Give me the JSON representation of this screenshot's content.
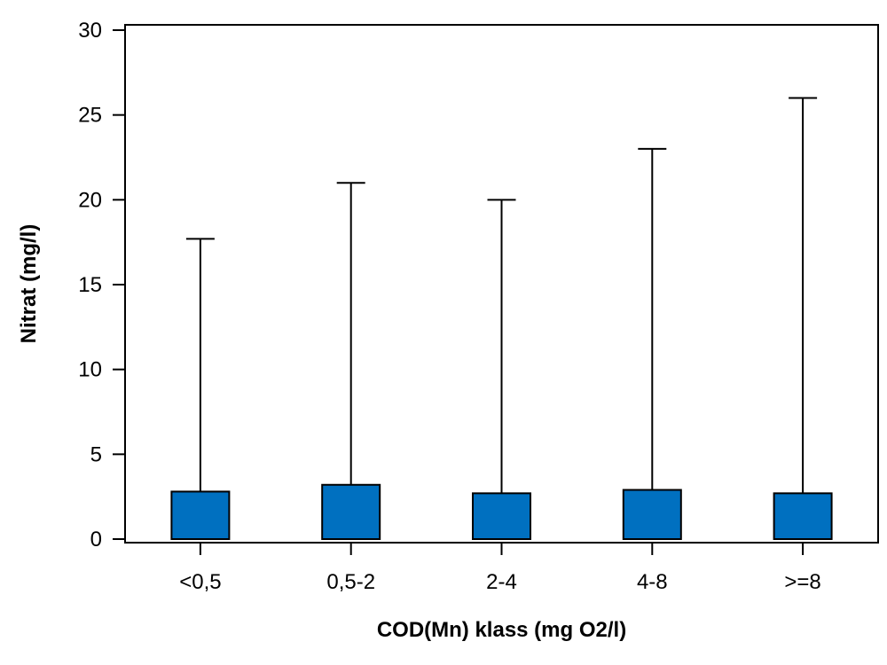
{
  "chart_data": {
    "type": "bar",
    "xlabel": "COD(Mn) klass (mg O2/l)",
    "ylabel": "Nitrat (mg/l)",
    "ylim": [
      0,
      30
    ],
    "yticks": [
      0,
      5,
      10,
      15,
      20,
      25,
      30
    ],
    "ytick_labels": [
      "0",
      "5",
      "10",
      "15",
      "20",
      "25",
      "30"
    ],
    "categories": [
      "<0,5",
      "0,5-2",
      "2-4",
      "4-8",
      ">=8"
    ],
    "values": [
      2.8,
      3.2,
      2.7,
      2.9,
      2.7
    ],
    "error_upper": [
      17.7,
      21.0,
      20.0,
      23.0,
      26.0
    ],
    "grid": false,
    "colors": {
      "bar_fill": "#0070C0",
      "bar_stroke": "#000000",
      "axis": "#000000"
    }
  }
}
